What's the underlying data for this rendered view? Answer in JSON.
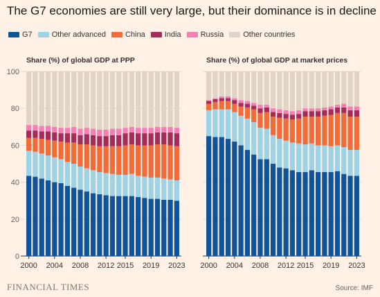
{
  "title": "The G7 economies are still very large, but their dominance is in decline",
  "legend": [
    {
      "label": "G7",
      "color": "#0f5499"
    },
    {
      "label": "Other advanced",
      "color": "#9dd3e4"
    },
    {
      "label": "China",
      "color": "#f26c3a"
    },
    {
      "label": "India",
      "color": "#a32c5a"
    },
    {
      "label": "Russia",
      "color": "#f57fb4"
    },
    {
      "label": "Other countries",
      "color": "#e0d4c6"
    }
  ],
  "footer": {
    "brand": "FINANCIAL TIMES",
    "source": "Source: IMF"
  },
  "chart_data": [
    {
      "type": "bar",
      "stacked": true,
      "title": "Share (%) of global GDP at PPP",
      "ylim": [
        0,
        100
      ],
      "yticks": [
        0,
        20,
        40,
        60,
        80,
        100
      ],
      "categories": [
        "2000",
        "2001",
        "2002",
        "2003",
        "2004",
        "2005",
        "2006",
        "2007",
        "2008",
        "2009",
        "2010",
        "2011",
        "2012",
        "2013",
        "2014",
        "2015",
        "2016",
        "2017",
        "2018",
        "2019",
        "2020",
        "2021",
        "2022",
        "2023"
      ],
      "xtick_labels": [
        "2000",
        "2004",
        "2008",
        "2012",
        "2015",
        "2019",
        "2023"
      ],
      "series": [
        {
          "name": "G7",
          "values": [
            43.5,
            43,
            42,
            41,
            40,
            39.5,
            38,
            37,
            36,
            35,
            34,
            33.5,
            33,
            32.5,
            32.5,
            32.5,
            32.5,
            32,
            31.5,
            31,
            31,
            30.5,
            30.5,
            30
          ]
        },
        {
          "name": "Other advanced",
          "values": [
            13.5,
            13.5,
            13.5,
            13.5,
            13.5,
            13,
            13,
            13,
            12.5,
            12.5,
            12.5,
            12,
            12,
            12,
            11.5,
            11.5,
            12,
            11.5,
            11.5,
            11.5,
            11.5,
            11.5,
            11,
            11
          ]
        },
        {
          "name": "China",
          "values": [
            7,
            7.5,
            8,
            8.5,
            9,
            9.5,
            10.5,
            11.5,
            12,
            13,
            13.5,
            14,
            14.5,
            15,
            15.5,
            16,
            16,
            16.5,
            17,
            17.5,
            18,
            18.5,
            18.5,
            18.5
          ]
        },
        {
          "name": "India",
          "values": [
            4,
            4,
            4,
            4.5,
            4.5,
            4.5,
            5,
            5,
            5,
            5.5,
            5.5,
            5.5,
            5.5,
            6,
            6,
            6.5,
            6.5,
            6.5,
            6.5,
            6.5,
            6.5,
            6.5,
            7,
            7
          ]
        },
        {
          "name": "Russia",
          "values": [
            3,
            3,
            3,
            3,
            3,
            3,
            3,
            3.5,
            3.5,
            3.5,
            3.5,
            3.5,
            3.5,
            3.5,
            3.5,
            3,
            3,
            3,
            3,
            3,
            3,
            3,
            3,
            3
          ]
        },
        {
          "name": "Other countries",
          "values": [
            29,
            29,
            29.5,
            29.5,
            30,
            30.5,
            30.5,
            30,
            31,
            30.5,
            31,
            31.5,
            31.5,
            31,
            31,
            30.5,
            30,
            30.5,
            30.5,
            30.5,
            30,
            30,
            30,
            30.5
          ]
        }
      ]
    },
    {
      "type": "bar",
      "stacked": true,
      "title": "Share (%) of global GDP at market prices",
      "ylim": [
        0,
        100
      ],
      "yticks": [
        0,
        20,
        40,
        60,
        80,
        100
      ],
      "categories": [
        "2000",
        "2001",
        "2002",
        "2003",
        "2004",
        "2005",
        "2006",
        "2007",
        "2008",
        "2009",
        "2010",
        "2011",
        "2012",
        "2013",
        "2014",
        "2015",
        "2016",
        "2017",
        "2018",
        "2019",
        "2020",
        "2021",
        "2022",
        "2023"
      ],
      "xtick_labels": [
        "2000",
        "2004",
        "2008",
        "2012",
        "2015",
        "2019",
        "2023"
      ],
      "series": [
        {
          "name": "G7",
          "values": [
            65,
            64.5,
            64.5,
            63.5,
            62,
            60,
            57.5,
            55,
            52.5,
            52.5,
            50,
            48,
            47.5,
            46.5,
            45.5,
            45.5,
            46.5,
            45.5,
            45.5,
            45.5,
            46,
            44.5,
            43.5,
            43.5
          ]
        },
        {
          "name": "Other advanced",
          "values": [
            14,
            15,
            15,
            16,
            16,
            16,
            17,
            17.5,
            17,
            16.5,
            15.5,
            15.5,
            15,
            15,
            15.5,
            15,
            14.5,
            14.5,
            14.5,
            14,
            14,
            14.5,
            14,
            14
          ]
        },
        {
          "name": "China",
          "values": [
            3.5,
            4,
            4.5,
            4.5,
            4.5,
            5,
            6,
            7,
            8,
            9,
            10,
            11.5,
            12,
            12.5,
            13.5,
            15,
            14.5,
            15.5,
            16,
            17,
            17.5,
            18.5,
            18,
            18
          ]
        },
        {
          "name": "India",
          "values": [
            1.5,
            1.5,
            1.5,
            1.5,
            2,
            2,
            2,
            2,
            2.5,
            2.5,
            2.5,
            2.5,
            2.5,
            2.5,
            2.5,
            3,
            3,
            3,
            3,
            3,
            3,
            3,
            3.5,
            3.5
          ]
        },
        {
          "name": "Russia",
          "values": [
            0.5,
            0.5,
            1,
            1,
            1,
            1.5,
            1.5,
            1.5,
            2,
            1.5,
            2,
            2,
            2,
            2,
            2,
            1.5,
            1.5,
            1.5,
            1.5,
            1.5,
            1.5,
            2,
            2,
            2
          ]
        },
        {
          "name": "Other countries",
          "values": [
            15.5,
            14.5,
            13.5,
            13.5,
            14.5,
            15.5,
            16,
            17,
            18,
            18,
            20,
            20.5,
            21,
            21.5,
            21,
            20,
            20,
            20,
            19.5,
            19,
            18,
            17.5,
            19,
            19
          ]
        }
      ]
    }
  ]
}
